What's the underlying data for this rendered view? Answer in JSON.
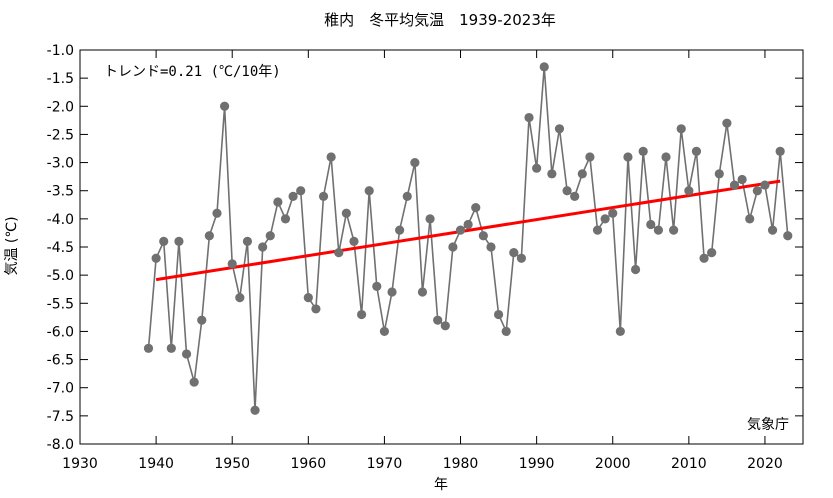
{
  "chart_data": {
    "type": "line",
    "title": "稚内　冬平均気温　1939-2023年",
    "xlabel": "年",
    "ylabel": "気温 (℃)",
    "annotation": "トレンド=0.21 (℃/10年)",
    "source": "気象庁",
    "xlim": [
      1930,
      2025
    ],
    "ylim": [
      -8.0,
      -1.0
    ],
    "xticks": [
      "1930",
      "1940",
      "1950",
      "1960",
      "1970",
      "1980",
      "1990",
      "2000",
      "2010",
      "2020"
    ],
    "yticks": [
      "-1.0",
      "-1.5",
      "-2.0",
      "-2.5",
      "-3.0",
      "-3.5",
      "-4.0",
      "-4.5",
      "-5.0",
      "-5.5",
      "-6.0",
      "-6.5",
      "-7.0",
      "-7.5",
      "-8.0"
    ],
    "series": [
      {
        "x": [
          1939,
          1940,
          1941,
          1942,
          1943,
          1944,
          1945,
          1946,
          1947,
          1948,
          1949,
          1950,
          1951,
          1952,
          1953,
          1954,
          1955,
          1956,
          1957,
          1958,
          1959,
          1960,
          1961,
          1962,
          1963,
          1964,
          1965,
          1966,
          1967,
          1968,
          1969,
          1970,
          1971,
          1972,
          1973,
          1974,
          1975,
          1976,
          1977,
          1978,
          1979,
          1980,
          1981,
          1982,
          1983,
          1984,
          1985,
          1986,
          1987,
          1988,
          1989,
          1990,
          1991,
          1992,
          1993,
          1994,
          1995,
          1996,
          1997,
          1998,
          1999,
          2000,
          2001,
          2002,
          2003,
          2004,
          2005,
          2006,
          2007,
          2008,
          2009,
          2010,
          2011,
          2012,
          2013,
          2014,
          2015,
          2016,
          2017,
          2018,
          2019,
          2020,
          2021,
          2022,
          2023
        ],
        "values": [
          -6.3,
          -4.7,
          -4.4,
          -6.3,
          -4.4,
          -6.4,
          -6.9,
          -5.8,
          -4.3,
          -3.9,
          -2.0,
          -4.8,
          -5.4,
          -4.4,
          -7.4,
          -4.5,
          -4.3,
          -3.7,
          -4.0,
          -3.6,
          -3.5,
          -5.4,
          -5.6,
          -3.6,
          -2.9,
          -4.6,
          -3.9,
          -4.4,
          -5.7,
          -3.5,
          -5.2,
          -6.0,
          -5.3,
          -4.2,
          -3.6,
          -3.0,
          -5.3,
          -4.0,
          -5.8,
          -5.9,
          -4.5,
          -4.2,
          -4.1,
          -3.8,
          -4.3,
          -4.5,
          -5.7,
          -6.0,
          -4.6,
          -4.7,
          -2.2,
          -3.1,
          -1.3,
          -3.2,
          -2.4,
          -3.5,
          -3.6,
          -3.2,
          -2.9,
          -4.2,
          -4.0,
          -3.9,
          -6.0,
          -2.9,
          -4.9,
          -2.8,
          -4.1,
          -4.2,
          -2.9,
          -4.2,
          -2.4,
          -3.5,
          -2.8,
          -4.7,
          -4.6,
          -3.2,
          -2.3,
          -3.4,
          -3.3,
          -4.0,
          -3.5,
          -3.4,
          -4.2,
          -2.8,
          -4.3
        ],
        "color": "#707070"
      }
    ],
    "trend": {
      "x": [
        1940,
        2022
      ],
      "y": [
        -5.08,
        -3.33
      ],
      "color": "#ff0000"
    },
    "grid": false
  }
}
